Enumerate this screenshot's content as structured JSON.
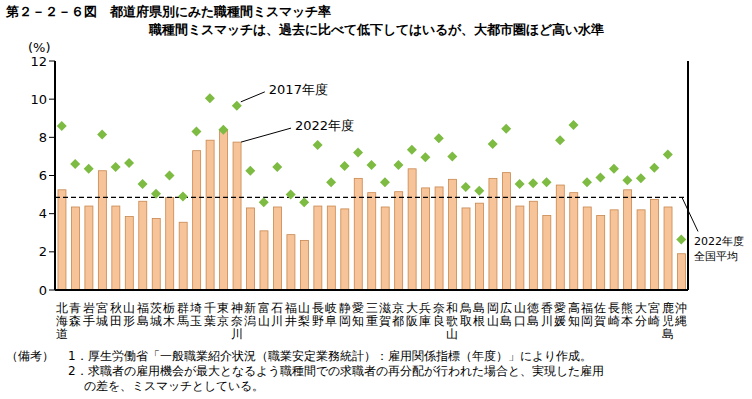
{
  "chart_data": {
    "type": "bar",
    "title": "第２－２－６図　都道府県別にみた職種間ミスマッチ率",
    "subtitle": "職種間ミスマッチは、過去に比べて低下してはいるが、大都市圏ほど高い水準",
    "y_label": "(%)",
    "categories": [
      "北海道",
      "青森",
      "岩手",
      "宮城",
      "秋田",
      "山形",
      "福島",
      "茨城",
      "栃木",
      "群馬",
      "埼玉",
      "千葉",
      "東京",
      "神奈川",
      "新潟",
      "富山",
      "石川",
      "福井",
      "山梨",
      "長野",
      "岐阜",
      "静岡",
      "愛知",
      "三重",
      "滋賀",
      "京都",
      "大阪",
      "兵庫",
      "奈良",
      "和歌山",
      "鳥取",
      "島根",
      "岡山",
      "広島",
      "山口",
      "徳島",
      "香川",
      "愛媛",
      "高知",
      "福岡",
      "佐賀",
      "長崎",
      "熊本",
      "大分",
      "宮崎",
      "鹿児島",
      "沖縄"
    ],
    "series": [
      {
        "name": "2022年度",
        "type": "bar",
        "color": "#f7c49a",
        "values": [
          5.25,
          4.35,
          4.4,
          6.25,
          4.4,
          3.85,
          4.65,
          3.75,
          4.85,
          3.55,
          7.3,
          7.85,
          8.4,
          7.75,
          4.3,
          3.1,
          4.35,
          2.9,
          2.6,
          4.4,
          4.4,
          4.25,
          5.85,
          5.1,
          4.35,
          5.15,
          6.35,
          5.35,
          5.4,
          5.8,
          4.3,
          4.55,
          5.85,
          6.15,
          4.4,
          4.65,
          3.9,
          5.5,
          5.1,
          4.35,
          3.9,
          4.2,
          5.25,
          4.2,
          4.75,
          4.35,
          1.9
        ]
      },
      {
        "name": "2017年度",
        "type": "scatter",
        "marker": "diamond",
        "color": "#7dbb42",
        "values": [
          8.6,
          6.6,
          6.35,
          8.15,
          6.45,
          6.65,
          5.55,
          5.05,
          6.0,
          4.9,
          8.3,
          10.05,
          8.4,
          9.65,
          6.25,
          4.6,
          6.45,
          5.0,
          4.6,
          7.6,
          5.65,
          6.5,
          7.2,
          6.55,
          5.65,
          6.55,
          7.35,
          6.95,
          7.95,
          7.0,
          5.4,
          5.2,
          7.65,
          8.45,
          5.55,
          5.6,
          5.65,
          7.85,
          8.65,
          5.65,
          5.9,
          6.35,
          5.75,
          5.85,
          6.4,
          7.1,
          2.65
        ]
      }
    ],
    "ylim": [
      0,
      12
    ],
    "yticks": [
      0,
      2,
      4,
      6,
      8,
      10,
      12
    ],
    "grid": false,
    "reference_line": {
      "value": 4.85,
      "label": [
        "2022年度",
        "全国平均"
      ],
      "line_style": "dashed"
    },
    "annotations": [
      {
        "text": "2017年度",
        "series": "2017年度",
        "category": "神奈川"
      },
      {
        "text": "2022年度",
        "series": "2022年度",
        "category": "神奈川"
      }
    ],
    "notes": [
      "（備考）",
      "1．厚生労働省「一般職業紹介状況（職業安定業務統計）：雇用関係指標（年度）」により作成。",
      "2．求職者の雇用機会が最大となるよう職種間での求職者の再分配が行われた場合と、実現した雇用の差を、ミスマッチとしている。"
    ]
  }
}
